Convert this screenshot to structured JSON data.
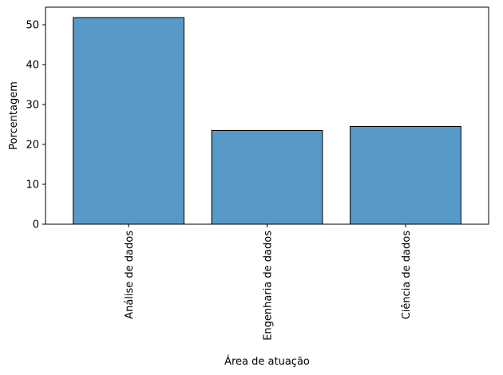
{
  "chart_data": {
    "type": "bar",
    "categories": [
      "Análise de dados",
      "Engenharia de dados",
      "Ciência de dados"
    ],
    "values": [
      51.8,
      23.5,
      24.5
    ],
    "xlabel": "Área de atuação",
    "ylabel": "Porcentagem",
    "ylim": [
      0,
      54.4
    ],
    "yticks": [
      0,
      10,
      20,
      30,
      40,
      50
    ],
    "grid": false,
    "colors": {
      "bar": "#5799c7",
      "bar_edge": "#000000"
    }
  }
}
